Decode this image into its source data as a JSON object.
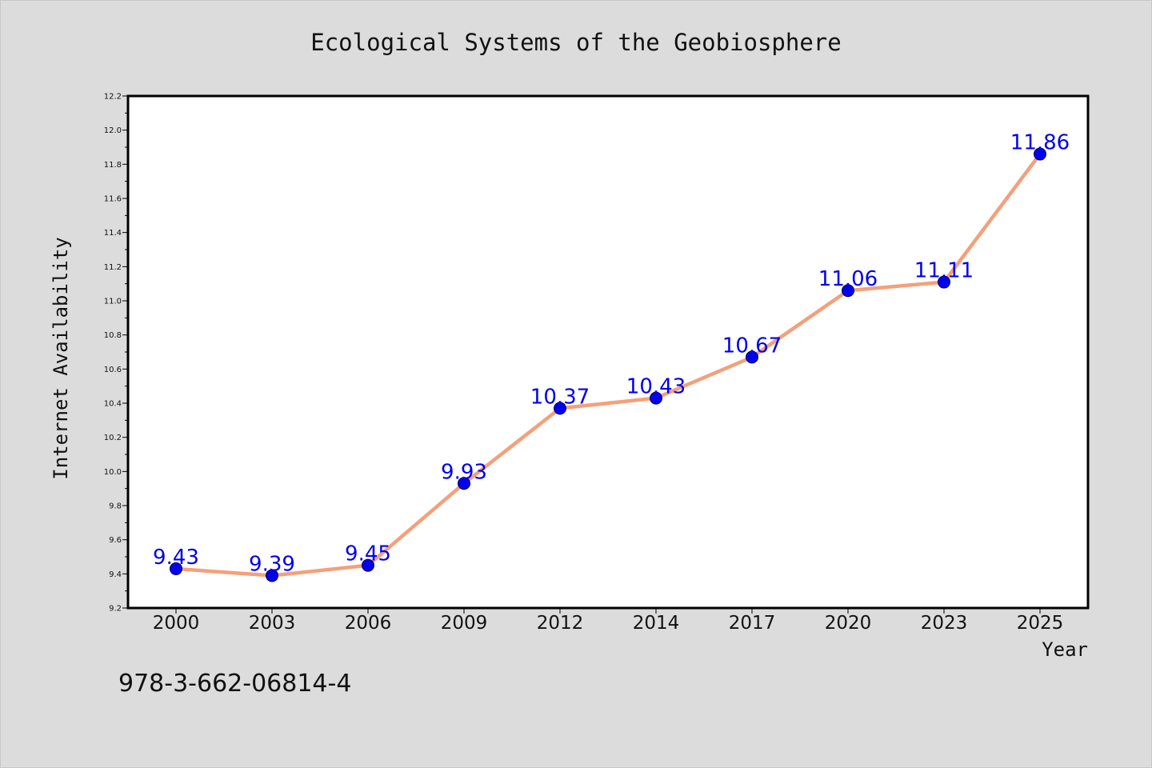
{
  "chart_data": {
    "type": "line",
    "title": "Ecological Systems of the Geobiosphere",
    "xlabel": "Year",
    "ylabel": "Internet Availability",
    "categories": [
      "2000",
      "2003",
      "2006",
      "2009",
      "2012",
      "2014",
      "2017",
      "2020",
      "2023",
      "2025"
    ],
    "series": [
      {
        "values": [
          9.43,
          9.39,
          9.45,
          9.93,
          10.37,
          10.43,
          10.67,
          11.06,
          11.11,
          11.86
        ],
        "data_labels": [
          "9.43",
          "9.39",
          "9.45",
          "9.93",
          "10.37",
          "10.43",
          "10.67",
          "11.06",
          "11.11",
          "11.86"
        ],
        "line_color": "#f4a07a",
        "marker_color": "#0000ee"
      }
    ],
    "ylim": [
      9.2,
      12.2
    ],
    "yticks": [
      "9.2",
      "9.4",
      "9.6",
      "9.8",
      "10.0",
      "10.2",
      "10.4",
      "10.6",
      "10.8",
      "11.0",
      "11.2",
      "11.4",
      "11.6",
      "11.8",
      "12.0",
      "12.2"
    ],
    "grid": false,
    "label_color": "#0000ee"
  },
  "annotation": "978-3-662-06814-4",
  "colors": {
    "background": "#dcdcdc",
    "plot_background": "#ffffff",
    "axis": "#000000"
  }
}
